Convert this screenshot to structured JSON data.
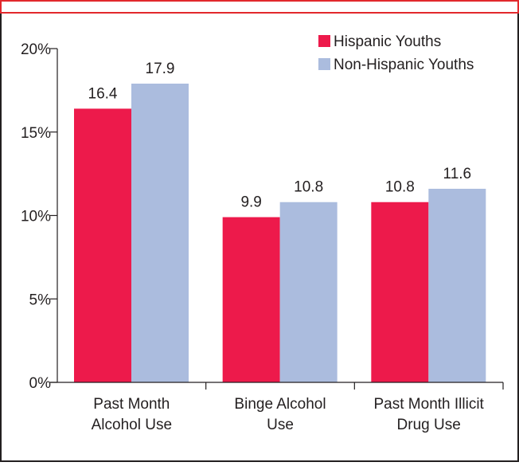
{
  "chart_data": {
    "type": "bar",
    "categories": [
      [
        "Past Month",
        "Alcohol Use"
      ],
      [
        "Binge Alcohol",
        "Use"
      ],
      [
        "Past Month Illicit",
        "Drug Use"
      ]
    ],
    "series": [
      {
        "name": "Hispanic Youths",
        "color": "#ed1a4b",
        "values": [
          16.4,
          9.9,
          10.8
        ]
      },
      {
        "name": "Non-Hispanic Youths",
        "color": "#abbcde",
        "values": [
          17.9,
          10.8,
          11.6
        ]
      }
    ],
    "yticks": [
      0,
      5,
      10,
      15,
      20
    ],
    "ytick_labels": [
      "0%",
      "5%",
      "10%",
      "15%",
      "20%"
    ],
    "ylim": [
      0,
      20
    ],
    "grid": false,
    "legend_position": "top-right",
    "data_labels": true
  },
  "colors": {
    "frame_outer": "#231f20",
    "frame_accent": "#e2282c",
    "axis": "#231f20"
  }
}
